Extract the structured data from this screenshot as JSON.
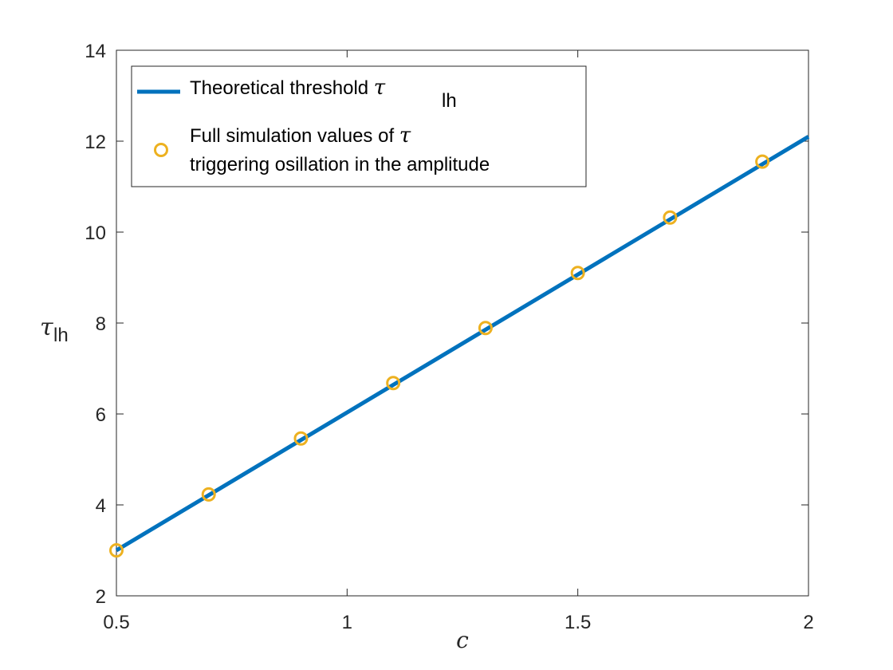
{
  "chart_data": {
    "type": "line",
    "title": "",
    "xlabel": "c",
    "ylabel_symbol": "τ",
    "ylabel_subscript": "lh",
    "xlim": [
      0.5,
      2
    ],
    "ylim": [
      2,
      14
    ],
    "xticks": [
      "0.5",
      "1",
      "1.5",
      "2"
    ],
    "xtick_values": [
      0.5,
      1,
      1.5,
      2
    ],
    "yticks": [
      "2",
      "4",
      "6",
      "8",
      "10",
      "12",
      "14"
    ],
    "ytick_values": [
      2,
      4,
      6,
      8,
      10,
      12,
      14
    ],
    "grid": false,
    "legend_position": "top-left",
    "series": [
      {
        "name": "Theoretical threshold τlh",
        "legend_text": "Theoretical threshold ",
        "legend_symbol": "τ",
        "legend_subscript": "lh",
        "kind": "line",
        "color": "#0072BD",
        "x": [
          0.5,
          2
        ],
        "y": [
          3.0,
          12.1
        ]
      },
      {
        "name": "Full simulation values of τ triggering osillation in the amplitude",
        "legend_line1": "Full simulation values of ",
        "legend_symbol": "τ",
        "legend_line2": "triggering osillation in the amplitude",
        "kind": "scatter",
        "marker": "circle",
        "color": "#EDB120",
        "x": [
          0.5,
          0.7,
          0.9,
          1.1,
          1.3,
          1.5,
          1.7,
          1.9
        ],
        "y": [
          3.0,
          4.23,
          5.46,
          6.68,
          7.89,
          9.1,
          10.32,
          11.55
        ]
      }
    ]
  }
}
